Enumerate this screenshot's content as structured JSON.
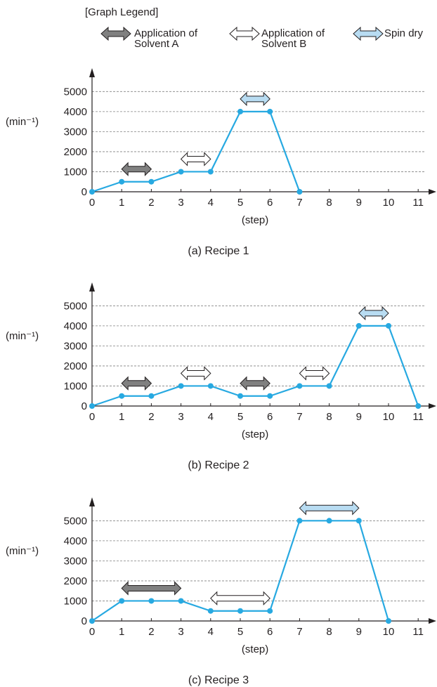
{
  "legend": {
    "title": "[Graph Legend]",
    "items": [
      {
        "line1": "Application of",
        "line2": "Solvent A",
        "fill": "#808080",
        "icon": "dark-gray-double-arrow"
      },
      {
        "line1": "Application of",
        "line2": "Solvent B",
        "fill": "#ffffff",
        "icon": "white-double-arrow"
      },
      {
        "line1": "Spin dry",
        "line2": "",
        "fill": "#b8dcf2",
        "icon": "light-blue-double-arrow"
      }
    ]
  },
  "colors": {
    "line": "#27a9e1",
    "grid": "#808080",
    "axis": "#231f20",
    "arrow_stroke": "#231f20"
  },
  "chart_data": [
    {
      "type": "line",
      "caption": "(a) Recipe 1",
      "xlabel": "(step)",
      "ylabel": "(min⁻¹)",
      "x_ticks": [
        0,
        1,
        2,
        3,
        4,
        5,
        6,
        7,
        8,
        9,
        10,
        11
      ],
      "y_ticks": [
        0,
        1000,
        2000,
        3000,
        4000,
        5000
      ],
      "xlim": [
        0,
        11
      ],
      "ylim": [
        0,
        5000
      ],
      "grid": "horizontal dashed",
      "series": [
        {
          "x": [
            0,
            1,
            2,
            3,
            4,
            5,
            6,
            7
          ],
          "y": [
            0,
            500,
            500,
            1000,
            1000,
            4000,
            4000,
            0
          ]
        }
      ],
      "phases": [
        {
          "type": "Solvent A",
          "from": 1,
          "to": 2,
          "level": 500
        },
        {
          "type": "Solvent B",
          "from": 3,
          "to": 4,
          "level": 1000
        },
        {
          "type": "Spin dry",
          "from": 5,
          "to": 6,
          "level": 4000
        }
      ]
    },
    {
      "type": "line",
      "caption": "(b) Recipe 2",
      "xlabel": "(step)",
      "ylabel": "(min⁻¹)",
      "x_ticks": [
        0,
        1,
        2,
        3,
        4,
        5,
        6,
        7,
        8,
        9,
        10,
        11
      ],
      "y_ticks": [
        0,
        1000,
        2000,
        3000,
        4000,
        5000
      ],
      "xlim": [
        0,
        11
      ],
      "ylim": [
        0,
        5000
      ],
      "grid": "horizontal dashed",
      "series": [
        {
          "x": [
            0,
            1,
            2,
            3,
            4,
            5,
            6,
            7,
            8,
            9,
            10,
            11
          ],
          "y": [
            0,
            500,
            500,
            1000,
            1000,
            500,
            500,
            1000,
            1000,
            4000,
            4000,
            0
          ]
        }
      ],
      "phases": [
        {
          "type": "Solvent A",
          "from": 1,
          "to": 2,
          "level": 500
        },
        {
          "type": "Solvent B",
          "from": 3,
          "to": 4,
          "level": 1000
        },
        {
          "type": "Solvent A",
          "from": 5,
          "to": 6,
          "level": 500
        },
        {
          "type": "Solvent B",
          "from": 7,
          "to": 8,
          "level": 1000
        },
        {
          "type": "Spin dry",
          "from": 9,
          "to": 10,
          "level": 4000
        }
      ]
    },
    {
      "type": "line",
      "caption": "(c) Recipe 3",
      "xlabel": "(step)",
      "ylabel": "(min⁻¹)",
      "x_ticks": [
        0,
        1,
        2,
        3,
        4,
        5,
        6,
        7,
        8,
        9,
        10,
        11
      ],
      "y_ticks": [
        0,
        1000,
        2000,
        3000,
        4000,
        5000
      ],
      "xlim": [
        0,
        11
      ],
      "ylim": [
        0,
        5000
      ],
      "grid": "horizontal dashed",
      "series": [
        {
          "x": [
            0,
            1,
            2,
            3,
            4,
            5,
            6,
            7,
            8,
            9,
            10
          ],
          "y": [
            0,
            1000,
            1000,
            1000,
            500,
            500,
            500,
            5000,
            5000,
            5000,
            0
          ]
        }
      ],
      "phases": [
        {
          "type": "Solvent A",
          "from": 1,
          "to": 3,
          "level": 1000
        },
        {
          "type": "Solvent B",
          "from": 4,
          "to": 6,
          "level": 500
        },
        {
          "type": "Spin dry",
          "from": 7,
          "to": 9,
          "level": 5000
        }
      ]
    }
  ]
}
